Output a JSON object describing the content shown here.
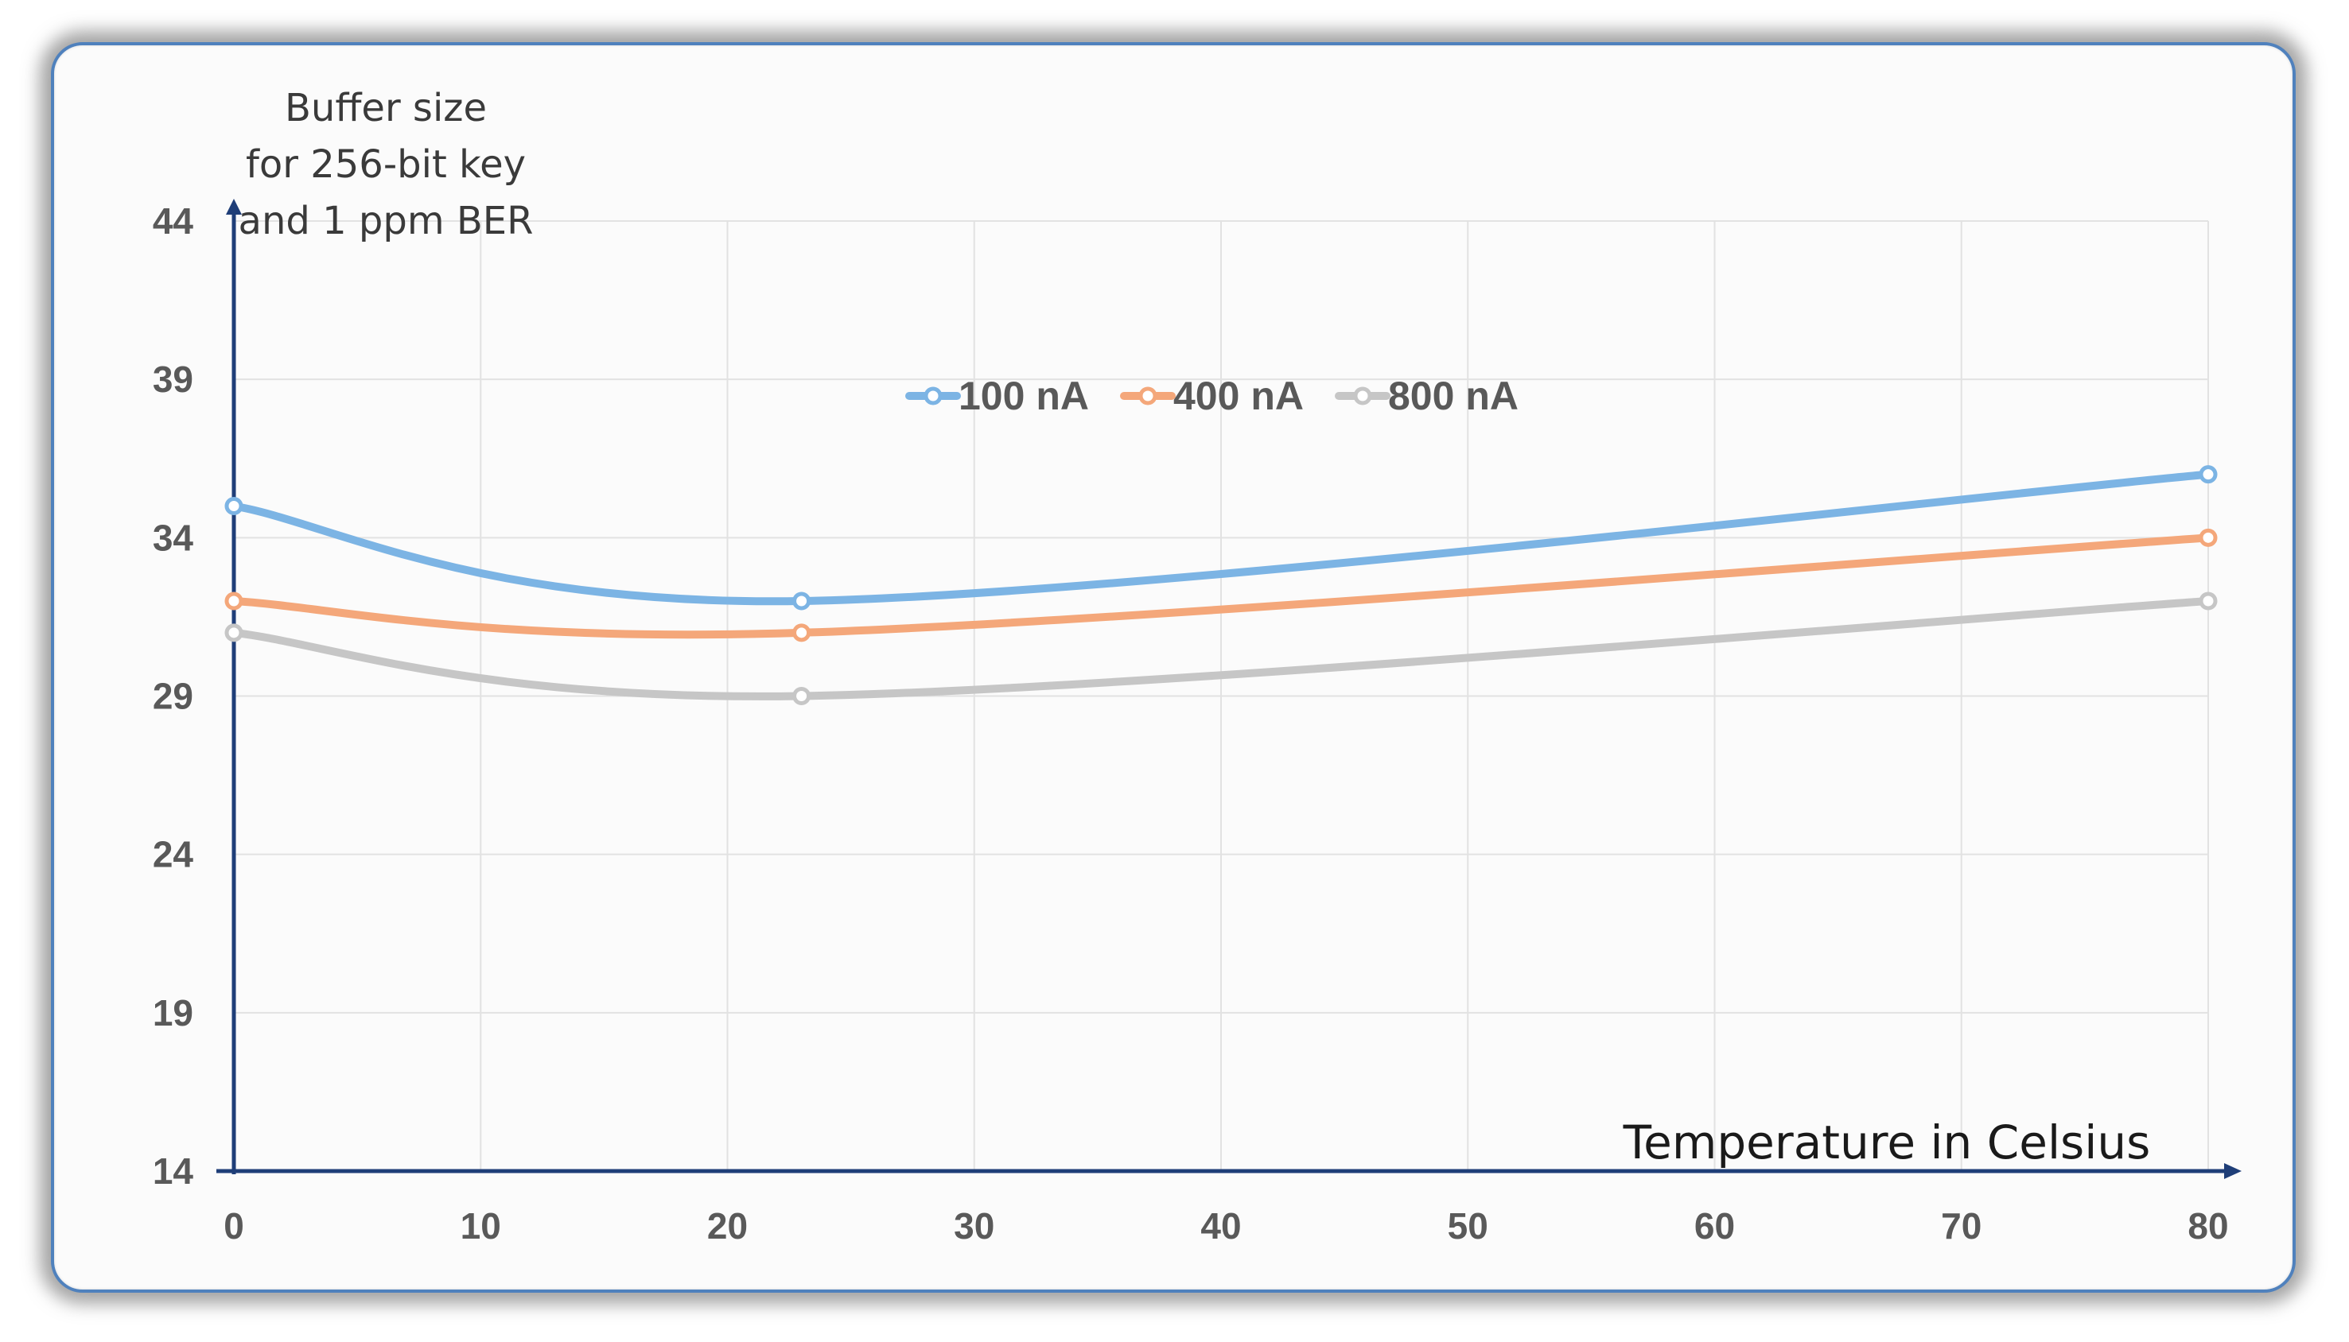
{
  "chart_data": {
    "type": "line",
    "smooth": true,
    "ylabel_lines": [
      "Buffer size",
      "for 256-bit key",
      "and 1 ppm BER"
    ],
    "xlabel": "Temperature in Celsius",
    "xlim": [
      0,
      80
    ],
    "ylim": [
      14,
      44
    ],
    "x_ticks": [
      "0",
      "10",
      "20",
      "30",
      "40",
      "50",
      "60",
      "70",
      "80"
    ],
    "y_ticks": [
      "14",
      "19",
      "24",
      "29",
      "34",
      "39",
      "44"
    ],
    "grid": true,
    "legend_position": "top-center",
    "x": [
      0,
      23,
      80
    ],
    "series": [
      {
        "name": "100 nA",
        "color": "#7cb4e4",
        "values": [
          35,
          32,
          36
        ]
      },
      {
        "name": "400 nA",
        "color": "#f4a77a",
        "values": [
          32,
          31,
          34
        ]
      },
      {
        "name": "800 nA",
        "color": "#c6c6c6",
        "values": [
          31,
          29,
          32
        ]
      }
    ]
  }
}
